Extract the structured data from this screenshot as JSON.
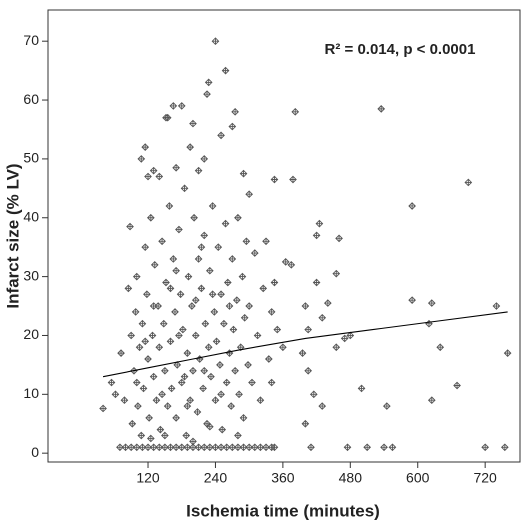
{
  "chart_data": {
    "type": "scatter",
    "annotation": "R² = 0.014, p < 0.0001",
    "xlabel": "Ischemia time (minutes)",
    "ylabel": "Infarct size (% LV)",
    "xlim": [
      -58,
      782
    ],
    "ylim": [
      -1.5,
      75.3
    ],
    "xticks": [
      120,
      240,
      360,
      480,
      600,
      720
    ],
    "yticks": [
      0,
      10,
      20,
      30,
      40,
      50,
      60,
      70
    ],
    "color": "#555555",
    "series": [
      {
        "x": [
          70,
          80,
          90,
          100,
          110,
          120,
          130,
          140,
          150,
          160,
          170,
          180,
          190,
          200,
          210,
          220,
          230,
          240,
          250,
          260,
          270,
          280,
          290,
          300,
          310,
          320,
          330,
          340,
          345,
          410,
          475,
          510,
          540,
          555,
          720,
          755,
          40,
          55,
          62,
          72,
          78,
          85,
          88,
          90,
          92,
          95,
          98,
          100,
          102,
          105,
          108,
          110,
          112,
          115,
          118,
          120,
          122,
          125,
          128,
          130,
          132,
          135,
          138,
          140,
          142,
          145,
          148,
          150,
          152,
          155,
          158,
          160,
          162,
          165,
          168,
          170,
          172,
          175,
          178,
          180,
          182,
          185,
          188,
          190,
          192,
          195,
          198,
          200,
          202,
          205,
          208,
          210,
          212,
          215,
          218,
          220,
          222,
          225,
          228,
          230,
          232,
          235,
          238,
          240,
          242,
          245,
          248,
          250,
          252,
          255,
          258,
          260,
          262,
          265,
          268,
          270,
          272,
          275,
          278,
          280,
          282,
          285,
          288,
          290,
          292,
          295,
          298,
          300,
          305,
          310,
          315,
          320,
          325,
          330,
          335,
          340,
          100,
          115,
          130,
          145,
          160,
          175,
          190,
          205,
          220,
          235,
          250,
          265,
          280,
          170,
          185,
          200,
          215,
          150,
          125,
          230,
          240,
          228,
          225,
          258,
          275,
          270,
          200,
          195,
          180,
          165,
          155,
          152,
          115,
          108,
          130,
          120,
          140,
          170,
          250,
          210,
          220,
          290,
          300,
          345,
          378,
          382,
          535,
          460,
          420,
          425,
          590,
          690,
          590,
          625,
          620,
          640,
          670,
          625,
          545,
          500,
          480,
          470,
          455,
          455,
          430,
          440,
          400,
          420,
          395,
          405,
          415,
          430,
          400,
          405,
          375,
          365,
          345,
          350,
          360,
          340,
          740,
          760
        ],
        "y": [
          1,
          1,
          1,
          1,
          1,
          1,
          1,
          1,
          1,
          1,
          1,
          1,
          1,
          1,
          1,
          1,
          1,
          1,
          1,
          1,
          1,
          1,
          1,
          1,
          1,
          1,
          1,
          1,
          1,
          1,
          1,
          1,
          1,
          1,
          1,
          1,
          7.6,
          12,
          10,
          17,
          9,
          28,
          38.5,
          20,
          5,
          14,
          24,
          30,
          8,
          18,
          3,
          22,
          11,
          35,
          27,
          16,
          6,
          40,
          20,
          13,
          32,
          9,
          25,
          18,
          4,
          36,
          22,
          14,
          29,
          8,
          42,
          19,
          11,
          33,
          24,
          6,
          15,
          38,
          27,
          12,
          21,
          45,
          3,
          17,
          30,
          9,
          25,
          14,
          40,
          20,
          7,
          33,
          16,
          28,
          11,
          37,
          22,
          5,
          18,
          31,
          13,
          42,
          24,
          9,
          19,
          35,
          15,
          27,
          4,
          22,
          39,
          12,
          29,
          17,
          8,
          33,
          21,
          14,
          26,
          40,
          10,
          18,
          30,
          6,
          23,
          36,
          15,
          25,
          12,
          34,
          20,
          9,
          28,
          36,
          16,
          24,
          12,
          19,
          25,
          10,
          28,
          20,
          8,
          26,
          14,
          27,
          10,
          25,
          3,
          31,
          13,
          2,
          35,
          3,
          2.5,
          4.5,
          70,
          63,
          61,
          65,
          58,
          55.5,
          56,
          52,
          59,
          59,
          57,
          57,
          52,
          50,
          48,
          47,
          47,
          48.5,
          54,
          48,
          50,
          47.5,
          44,
          46.5,
          46.5,
          58,
          58.5,
          36.5,
          37,
          39,
          42,
          46,
          26,
          25.5,
          22,
          18,
          11.5,
          9,
          8,
          11,
          20,
          19.5,
          30.5,
          18,
          23,
          25.5,
          25,
          29,
          17,
          14,
          10,
          8,
          5,
          21,
          32,
          32.5,
          29,
          21,
          18,
          12,
          25,
          17
        ]
      }
    ],
    "fit": {
      "x": [
        40,
        120,
        200,
        280,
        400,
        520,
        640,
        760
      ],
      "y": [
        13,
        14.5,
        16,
        17.5,
        19.5,
        21,
        22.5,
        24
      ],
      "color": "#000000"
    }
  }
}
